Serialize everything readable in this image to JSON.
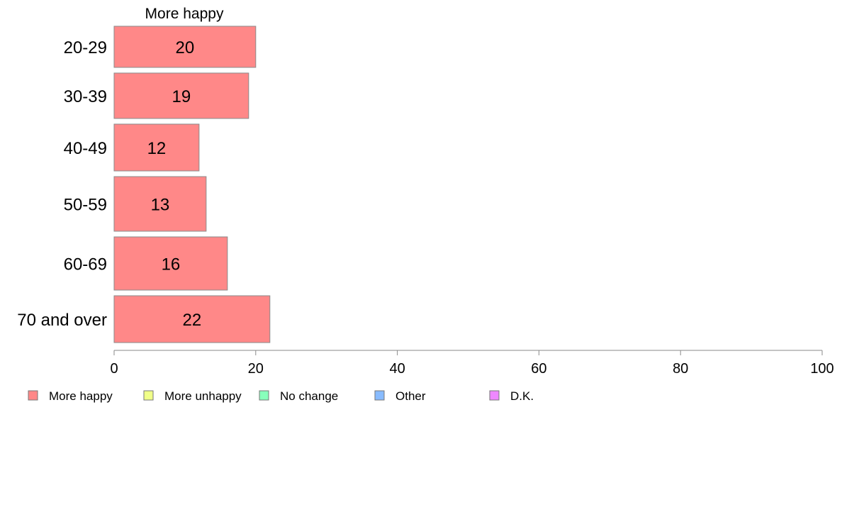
{
  "chart_data": {
    "type": "bar",
    "orientation": "horizontal",
    "stacked": true,
    "panel_title": "More happy",
    "categories": [
      "20-29",
      "30-39",
      "40-49",
      "50-59",
      "60-69",
      "70 and over"
    ],
    "series": [
      {
        "name": "More happy",
        "color": "#ff8888",
        "values": [
          20,
          19,
          12,
          13,
          16,
          22
        ]
      }
    ],
    "legend": [
      {
        "name": "More happy",
        "color": "#ff8888"
      },
      {
        "name": "More unhappy",
        "color": "#f0ff88"
      },
      {
        "name": "No change",
        "color": "#88ffbb"
      },
      {
        "name": "Other",
        "color": "#88bbff"
      },
      {
        "name": "D.K.",
        "color": "#ee88ff"
      }
    ],
    "legend_position": "bottom-left",
    "xlim": [
      0,
      100
    ],
    "xticks": [
      0,
      20,
      40,
      60,
      80,
      100
    ],
    "xlabel": "",
    "ylabel": "",
    "grid": false
  }
}
